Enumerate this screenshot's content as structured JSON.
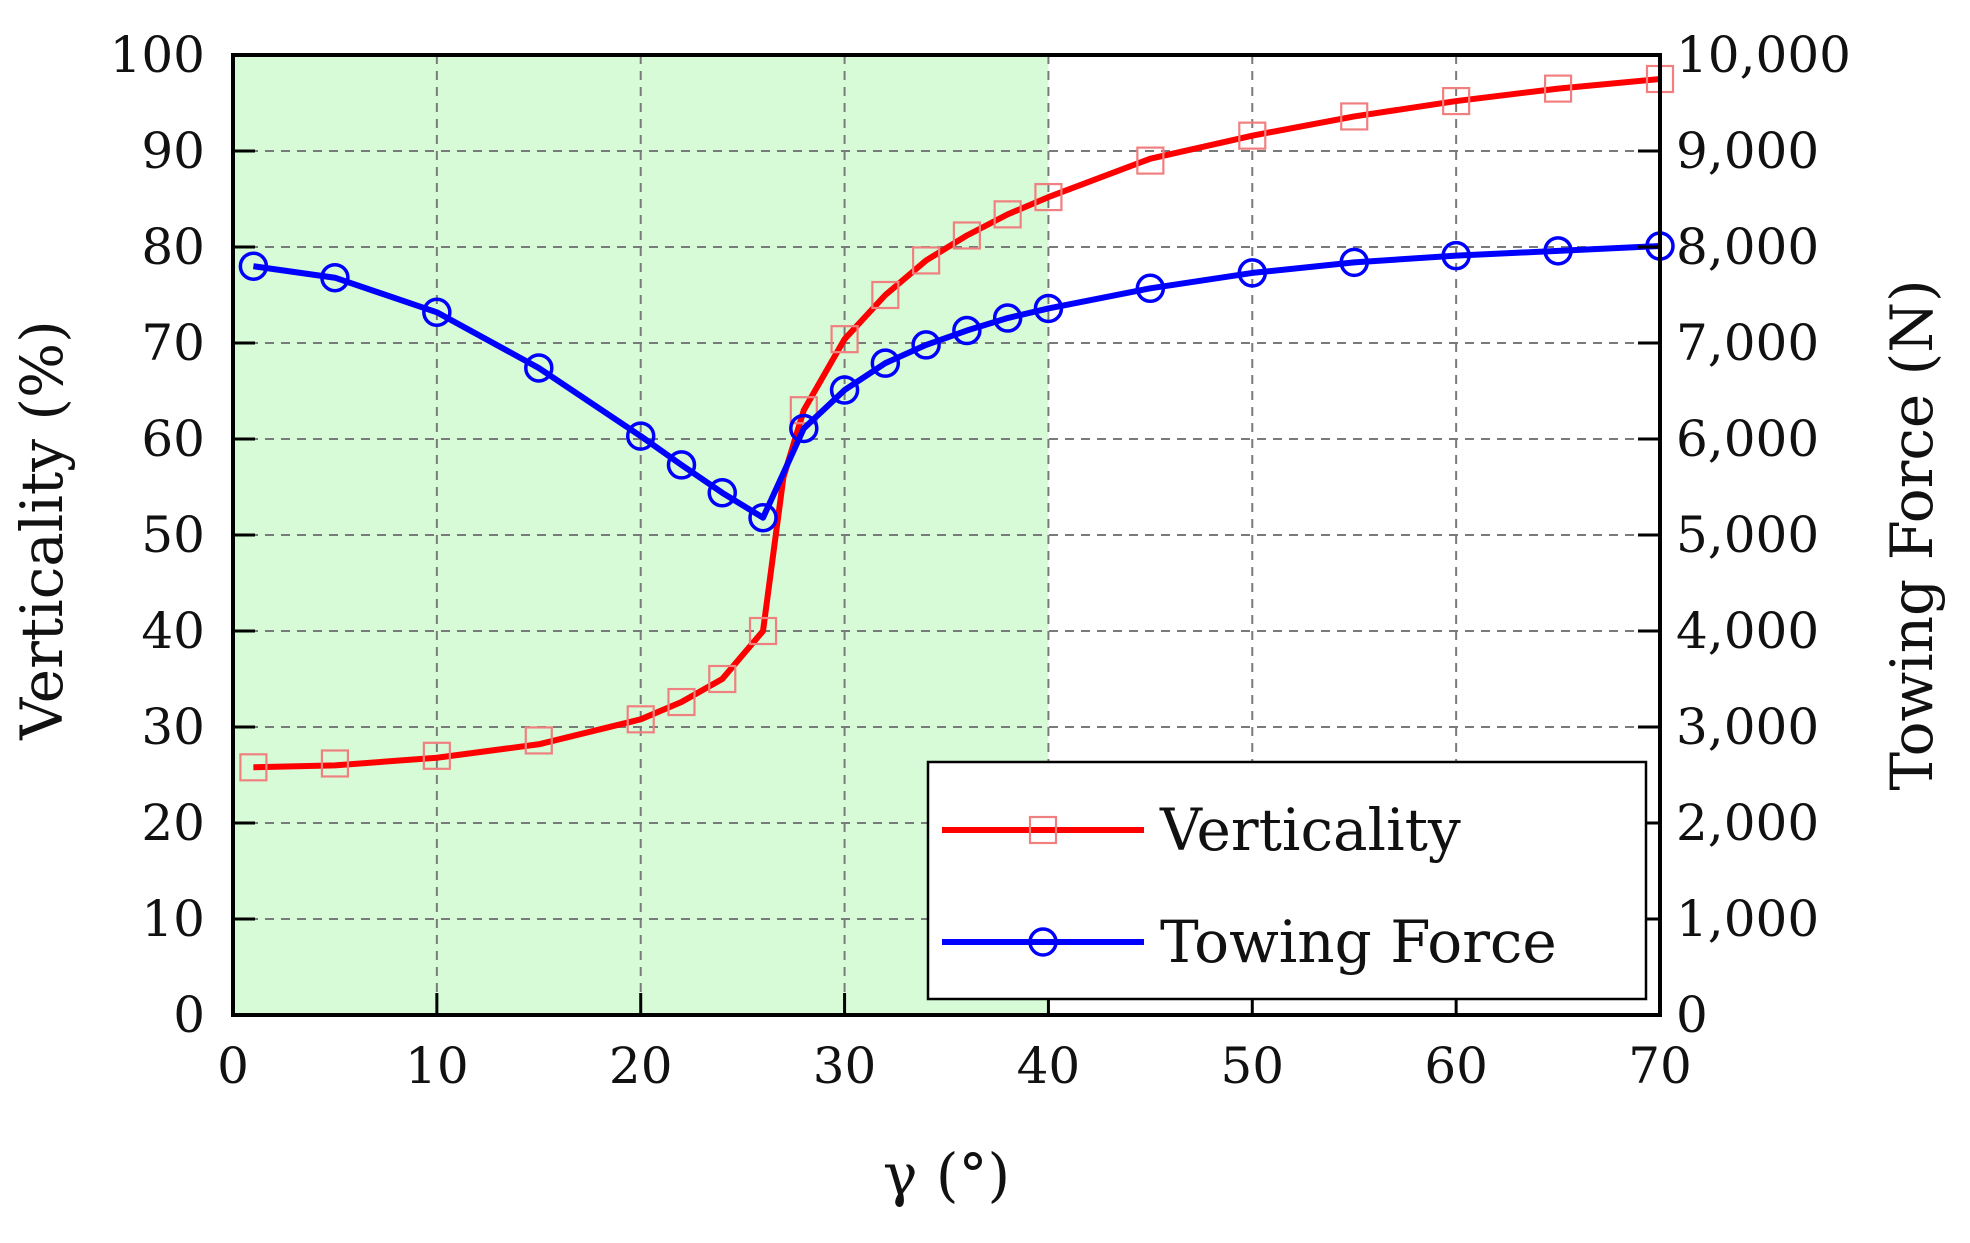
{
  "chart_data": {
    "type": "line",
    "xlabel": "γ (°)",
    "ylabel": "Verticality (%)",
    "y2label": "Towing Force (N)",
    "xlim": [
      0,
      70
    ],
    "ylim": [
      0,
      100
    ],
    "y2lim": [
      0,
      10000
    ],
    "x_ticks": [
      0,
      10,
      20,
      30,
      40,
      50,
      60,
      70
    ],
    "x_tick_labels": [
      "0",
      "10",
      "20",
      "30",
      "40",
      "50",
      "60",
      "70"
    ],
    "y_ticks": [
      0,
      10,
      20,
      30,
      40,
      50,
      60,
      70,
      80,
      90,
      100
    ],
    "y_tick_labels": [
      "0",
      "10",
      "20",
      "30",
      "40",
      "50",
      "60",
      "70",
      "80",
      "90",
      "100"
    ],
    "y2_ticks": [
      0,
      1000,
      2000,
      3000,
      4000,
      5000,
      6000,
      7000,
      8000,
      9000,
      10000
    ],
    "y2_tick_labels": [
      "0",
      "1,000",
      "2,000",
      "3,000",
      "4,000",
      "5,000",
      "6,000",
      "7,000",
      "8,000",
      "9,000",
      "10,000"
    ],
    "grid": true,
    "shaded_region": {
      "x_range": [
        0,
        40
      ],
      "color": "#d6fbd6"
    },
    "legend_position": "bottom-right",
    "series": [
      {
        "name": "Verticality",
        "axis": "left",
        "color": "#ff0000",
        "marker_color": "#f08080",
        "marker": "square",
        "line_x": [
          1,
          5,
          10,
          15,
          20,
          22,
          24,
          26,
          27,
          28,
          30,
          32,
          34,
          36,
          38,
          40,
          45,
          50,
          55,
          60,
          65,
          70
        ],
        "line_y": [
          25.8,
          26.0,
          26.8,
          28.2,
          30.8,
          32.6,
          35.0,
          40.0,
          56,
          63.0,
          70.4,
          75.0,
          78.6,
          81.2,
          83.4,
          85.2,
          89.2,
          91.6,
          93.6,
          95.2,
          96.5,
          97.5
        ],
        "marker_x": [
          1,
          5,
          10,
          15,
          20,
          22,
          24,
          26,
          28,
          30,
          32,
          34,
          36,
          38,
          40,
          45,
          50,
          55,
          60,
          65,
          70
        ],
        "marker_y": [
          25.8,
          26.2,
          27.0,
          28.6,
          30.8,
          32.6,
          35.0,
          40.0,
          63.0,
          70.4,
          75.0,
          78.6,
          81.2,
          83.4,
          85.2,
          89.0,
          91.6,
          93.6,
          95.2,
          96.5,
          97.5
        ]
      },
      {
        "name": "Towing Force",
        "axis": "right",
        "color": "#0000ff",
        "marker_color": "#0000ff",
        "marker": "circle",
        "x": [
          1,
          5,
          10,
          15,
          20,
          22,
          24,
          26,
          28,
          30,
          32,
          34,
          36,
          38,
          40,
          45,
          50,
          55,
          60,
          65,
          70
        ],
        "y": [
          7800,
          7680,
          7320,
          6740,
          6030,
          5730,
          5440,
          5180,
          6110,
          6510,
          6790,
          6980,
          7130,
          7260,
          7360,
          7570,
          7730,
          7840,
          7910,
          7960,
          8010
        ]
      }
    ]
  }
}
